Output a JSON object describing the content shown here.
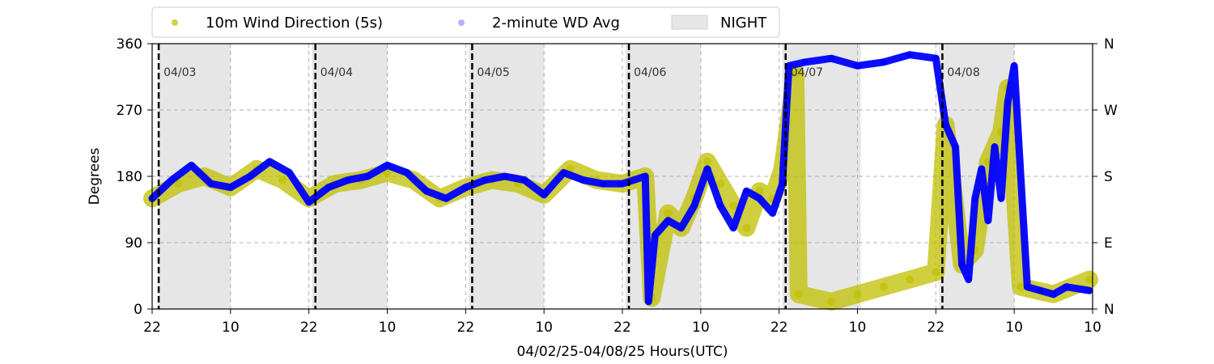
{
  "chart_data": {
    "type": "scatter",
    "title": "",
    "xlabel": "04/02/25-04/08/25  Hours(UTC)",
    "ylabel": "Degrees",
    "xlim": [
      22,
      166
    ],
    "ylim": [
      0,
      360
    ],
    "x_tick_values": [
      22,
      34,
      46,
      58,
      70,
      82,
      94,
      106,
      118,
      130,
      142,
      154,
      166
    ],
    "x_tick_labels": [
      "22",
      "10",
      "22",
      "10",
      "22",
      "10",
      "22",
      "10",
      "22",
      "10",
      "22",
      "10",
      "10"
    ],
    "y_ticks": [
      0,
      90,
      180,
      270,
      360
    ],
    "y_tick_labels": [
      "0",
      "90",
      "180",
      "270",
      "360"
    ],
    "y2_tick_labels": [
      "N",
      "E",
      "S",
      "W",
      "N"
    ],
    "grid": true,
    "legend_position": "top",
    "legend": [
      {
        "label": "10m Wind Direction (5s)",
        "color": "#bfbf00"
      },
      {
        "label": "2-minute WD Avg",
        "color": "#0000ff"
      },
      {
        "label": "NIGHT",
        "color": "#e6e6e6"
      }
    ],
    "day_markers": [
      {
        "x": 23,
        "label": "04/03"
      },
      {
        "x": 47,
        "label": "04/04"
      },
      {
        "x": 71,
        "label": "04/05"
      },
      {
        "x": 95,
        "label": "04/06"
      },
      {
        "x": 119,
        "label": "04/07"
      },
      {
        "x": 143,
        "label": "04/08"
      }
    ],
    "night_periods": [
      [
        23,
        34
      ],
      [
        46.5,
        58
      ],
      [
        70.5,
        82
      ],
      [
        94.5,
        106
      ],
      [
        118.5,
        130.5
      ],
      [
        142.5,
        154
      ]
    ],
    "series": [
      {
        "name": "10m Wind Direction (5s)",
        "color": "#bfbf00",
        "x": [
          22,
          26,
          30,
          34,
          38,
          42,
          46,
          50,
          54,
          58,
          62,
          66,
          70,
          74,
          78,
          82,
          86,
          90,
          94,
          97.5,
          98.5,
          101,
          103,
          105,
          107,
          109,
          111,
          113,
          115,
          117,
          118.5,
          120.5,
          121,
          126,
          130,
          134,
          138,
          142,
          143.5,
          146,
          148,
          150,
          152,
          153,
          155,
          160,
          165.5
        ],
        "y": [
          150,
          170,
          180,
          165,
          190,
          175,
          150,
          170,
          175,
          185,
          175,
          150,
          165,
          175,
          170,
          155,
          190,
          175,
          170,
          180,
          15,
          130,
          110,
          150,
          200,
          170,
          140,
          110,
          160,
          150,
          190,
          320,
          20,
          10,
          20,
          30,
          40,
          50,
          250,
          60,
          80,
          200,
          240,
          300,
          30,
          20,
          40
        ]
      },
      {
        "name": "2-minute WD Avg",
        "color": "#0000ff",
        "x": [
          22,
          25,
          28,
          31,
          34,
          37,
          40,
          43,
          46,
          49,
          52,
          55,
          58,
          61,
          64,
          67,
          70,
          73,
          76,
          79,
          82,
          85,
          88,
          91,
          94,
          97.5,
          98,
          99,
          101,
          103,
          105,
          107,
          109,
          111,
          113,
          115,
          117,
          118.5,
          119.5,
          122,
          126,
          130,
          134,
          138,
          142,
          143.5,
          145,
          146,
          147,
          148,
          149,
          150,
          151,
          152,
          153,
          154,
          156,
          158,
          160,
          162,
          165.5
        ],
        "y": [
          150,
          175,
          195,
          170,
          165,
          180,
          200,
          185,
          145,
          165,
          175,
          180,
          195,
          185,
          160,
          150,
          165,
          175,
          180,
          175,
          155,
          185,
          175,
          170,
          170,
          180,
          10,
          100,
          120,
          110,
          140,
          190,
          140,
          110,
          160,
          150,
          130,
          170,
          330,
          335,
          340,
          330,
          335,
          345,
          340,
          250,
          220,
          60,
          40,
          150,
          190,
          120,
          220,
          150,
          280,
          330,
          30,
          25,
          20,
          30,
          25
        ]
      }
    ]
  }
}
